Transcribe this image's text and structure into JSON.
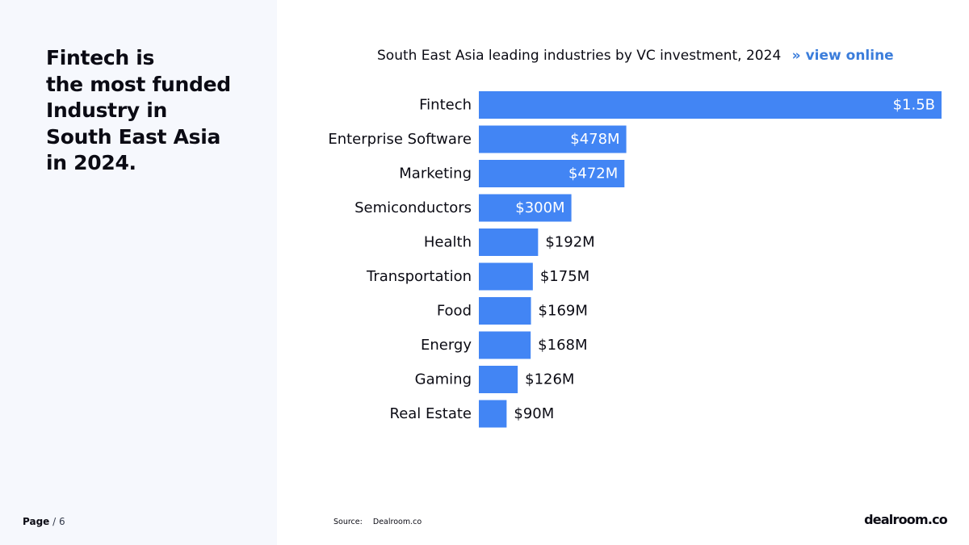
{
  "headline": {
    "lines": [
      "Fintech is",
      "the most funded",
      "Industry in",
      "South East Asia",
      "in 2024."
    ]
  },
  "page": {
    "label": "Page",
    "separator": " / ",
    "number": "6"
  },
  "chart": {
    "title": "South East Asia leading industries by VC investment, 2024",
    "link_arrow": "»",
    "link_text": "view online"
  },
  "source": {
    "label": "Source:",
    "value": "Dealroom.co"
  },
  "brand": {
    "logo_text": "dealroom.co"
  },
  "colors": {
    "bar": "#4285f4",
    "label_inside": "#ffffff",
    "label_outside": "#0b0b14",
    "link": "#3b7ddb"
  },
  "chart_data": {
    "type": "bar",
    "orientation": "horizontal",
    "title": "South East Asia leading industries by VC investment, 2024",
    "xlabel": "",
    "ylabel": "",
    "unit": "USD millions",
    "xlim": [
      0,
      1500
    ],
    "categories": [
      "Fintech",
      "Enterprise Software",
      "Marketing",
      "Semiconductors",
      "Health",
      "Transportation",
      "Food",
      "Energy",
      "Gaming",
      "Real Estate"
    ],
    "values": [
      1500,
      478,
      472,
      300,
      192,
      175,
      169,
      168,
      126,
      90
    ],
    "value_labels": [
      "$1.5B",
      "$478M",
      "$472M",
      "$300M",
      "$192M",
      "$175M",
      "$169M",
      "$168M",
      "$126M",
      "$90M"
    ]
  }
}
